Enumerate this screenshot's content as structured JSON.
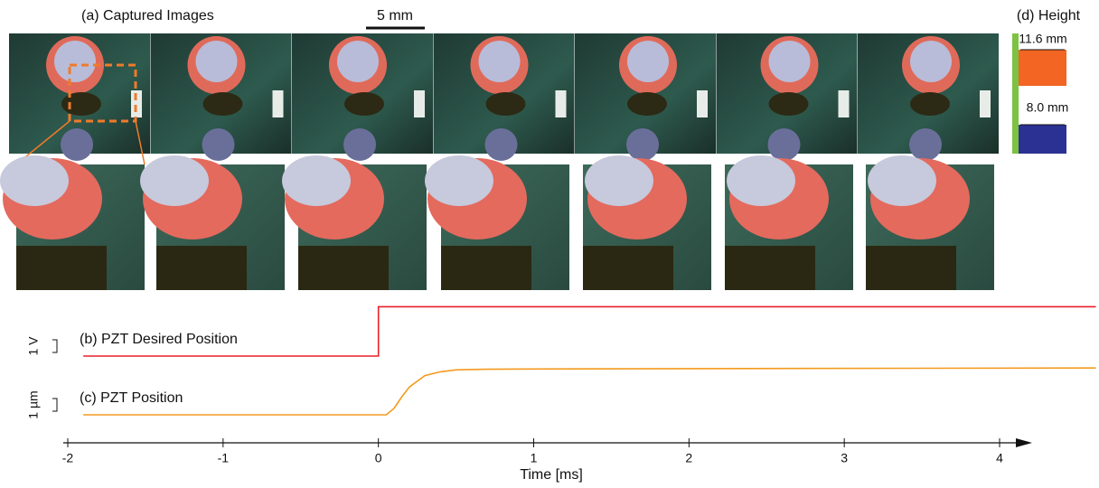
{
  "panels": {
    "captured": "(a) Captured Images",
    "scale_bar": "5 mm",
    "height_title": "(d) Height",
    "height_high": "11.6 mm",
    "height_low": "8.0 mm"
  },
  "chart_data": {
    "type": "line",
    "xlabel": "Time [ms]",
    "xlim": [
      -2,
      4
    ],
    "xticks": [
      -2,
      -1,
      0,
      1,
      2,
      3,
      4
    ],
    "series": [
      {
        "name": "(b) PZT Desired Position",
        "color": "#e8202a",
        "scale": {
          "value": 1,
          "label": "1 V"
        },
        "x": [
          -1.9,
          0,
          0,
          4.62
        ],
        "values": [
          0,
          0,
          3.9,
          3.9
        ]
      },
      {
        "name": "(c) PZT Position",
        "color": "#f39a1e",
        "scale": {
          "value": 1,
          "label": "1 µm"
        },
        "x": [
          -1.9,
          0.05,
          0.1,
          0.15,
          0.2,
          0.3,
          0.4,
          0.5,
          0.7,
          1,
          2,
          4.62
        ],
        "values": [
          0,
          0,
          0.5,
          1.4,
          2.2,
          3.1,
          3.4,
          3.55,
          3.6,
          3.62,
          3.65,
          3.7
        ]
      }
    ]
  }
}
